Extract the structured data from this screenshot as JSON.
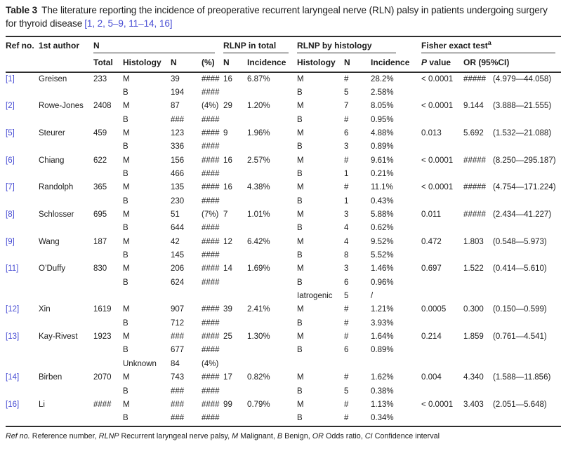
{
  "title": {
    "label": "Table 3",
    "text": "The literature reporting the incidence of preoperative recurrent laryngeal nerve (RLN) palsy in patients undergoing surgery for thyroid disease",
    "citation": "[1, 2, 5–9, 11–14, 16]"
  },
  "colors": {
    "link": "#4a4fd4",
    "text": "#1c1c1c",
    "rule": "#2e2e2e"
  },
  "header": {
    "ref_no": "Ref no.",
    "first_author": "1st author",
    "group_n": "N",
    "group_rlnp_total": "RLNP in total",
    "group_rlnp_hist": "RLNP by histology",
    "group_fisher": "Fisher exact test",
    "group_fisher_sup": "a",
    "total": "Total",
    "histology": "Histology",
    "n_count": "N",
    "pct": "(%)",
    "n_total": "N",
    "incidence_total": "Incidence",
    "histology2": "Histology",
    "n_hist": "N",
    "incidence_hist": "Incidence",
    "p_italic": "P",
    "p_rest": " value",
    "or_ci": "OR (95%CI)"
  },
  "studies": [
    {
      "ref": "[1]",
      "author": "Greisen",
      "total": "233",
      "lines": [
        [
          "M",
          "39",
          "####",
          "16",
          "6.87%",
          "M",
          "#",
          "28.2%",
          "< 0.0001",
          "#####",
          "(4.979—44.058)"
        ],
        [
          "B",
          "194",
          "####",
          "",
          "",
          "B",
          "5",
          "2.58%",
          "",
          "",
          ""
        ]
      ]
    },
    {
      "ref": "[2]",
      "author": "Rowe-Jones",
      "total": "2408",
      "lines": [
        [
          "M",
          "87",
          "(4%)",
          "29",
          "1.20%",
          "M",
          "7",
          "8.05%",
          "< 0.0001",
          "9.144",
          "(3.888—21.555)"
        ],
        [
          "B",
          "###",
          "####",
          "",
          "",
          "B",
          "#",
          "0.95%",
          "",
          "",
          ""
        ]
      ]
    },
    {
      "ref": "[5]",
      "author": "Steurer",
      "total": "459",
      "lines": [
        [
          "M",
          "123",
          "####",
          "9",
          "1.96%",
          "M",
          "6",
          "4.88%",
          "0.013",
          "5.692",
          "(1.532—21.088)"
        ],
        [
          "B",
          "336",
          "####",
          "",
          "",
          "B",
          "3",
          "0.89%",
          "",
          "",
          ""
        ]
      ]
    },
    {
      "ref": "[6]",
      "author": "Chiang",
      "total": "622",
      "lines": [
        [
          "M",
          "156",
          "####",
          "16",
          "2.57%",
          "M",
          "#",
          "9.61%",
          "< 0.0001",
          "#####",
          "(8.250—295.187)"
        ],
        [
          "B",
          "466",
          "####",
          "",
          "",
          "B",
          "1",
          "0.21%",
          "",
          "",
          ""
        ]
      ]
    },
    {
      "ref": "[7]",
      "author": "Randolph",
      "total": "365",
      "lines": [
        [
          "M",
          "135",
          "####",
          "16",
          "4.38%",
          "M",
          "#",
          "11.1%",
          "< 0.0001",
          "#####",
          "(4.754—171.224)"
        ],
        [
          "B",
          "230",
          "####",
          "",
          "",
          "B",
          "1",
          "0.43%",
          "",
          "",
          ""
        ]
      ]
    },
    {
      "ref": "[8]",
      "author": "Schlosser",
      "total": "695",
      "lines": [
        [
          "M",
          "51",
          "(7%)",
          "7",
          "1.01%",
          "M",
          "3",
          "5.88%",
          "0.011",
          "#####",
          "(2.434—41.227)"
        ],
        [
          "B",
          "644",
          "####",
          "",
          "",
          "B",
          "4",
          "0.62%",
          "",
          "",
          ""
        ]
      ]
    },
    {
      "ref": "[9]",
      "author": "Wang",
      "total": "187",
      "lines": [
        [
          "M",
          "42",
          "####",
          "12",
          "6.42%",
          "M",
          "4",
          "9.52%",
          "0.472",
          "1.803",
          "(0.548—5.973)"
        ],
        [
          "B",
          "145",
          "####",
          "",
          "",
          "B",
          "8",
          "5.52%",
          "",
          "",
          ""
        ]
      ]
    },
    {
      "ref": "[11]",
      "author": "O’Duffy",
      "total": "830",
      "lines": [
        [
          "M",
          "206",
          "####",
          "14",
          "1.69%",
          "M",
          "3",
          "1.46%",
          "0.697",
          "1.522",
          "(0.414—5.610)"
        ],
        [
          "B",
          "624",
          "####",
          "",
          "",
          "B",
          "6",
          "0.96%",
          "",
          "",
          ""
        ],
        [
          "",
          "",
          "",
          "",
          "",
          "Iatrogenic",
          "5",
          "/",
          "",
          "",
          ""
        ]
      ]
    },
    {
      "ref": "[12]",
      "author": "Xin",
      "total": "1619",
      "lines": [
        [
          "M",
          "907",
          "####",
          "39",
          "2.41%",
          "M",
          "#",
          "1.21%",
          "0.0005",
          "0.300",
          "(0.150—0.599)"
        ],
        [
          "B",
          "712",
          "####",
          "",
          "",
          "B",
          "#",
          "3.93%",
          "",
          "",
          ""
        ]
      ]
    },
    {
      "ref": "[13]",
      "author": "Kay-Rivest",
      "total": "1923",
      "lines": [
        [
          "M",
          "###",
          "####",
          "25",
          "1.30%",
          "M",
          "#",
          "1.64%",
          "0.214",
          "1.859",
          "(0.761—4.541)"
        ],
        [
          "B",
          "677",
          "####",
          "",
          "",
          "B",
          "6",
          "0.89%",
          "",
          "",
          ""
        ],
        [
          "Unknown",
          "84",
          "(4%)",
          "",
          "",
          "",
          "",
          "",
          "",
          "",
          ""
        ]
      ]
    },
    {
      "ref": "[14]",
      "author": "Birben",
      "total": "2070",
      "lines": [
        [
          "M",
          "743",
          "####",
          "17",
          "0.82%",
          "M",
          "#",
          "1.62%",
          "0.004",
          "4.340",
          "(1.588—11.856)"
        ],
        [
          "B",
          "###",
          "####",
          "",
          "",
          "B",
          "5",
          "0.38%",
          "",
          "",
          ""
        ]
      ]
    },
    {
      "ref": "[16]",
      "author": "Li",
      "total": "####",
      "lines": [
        [
          "M",
          "###",
          "####",
          "99",
          "0.79%",
          "M",
          "#",
          "1.13%",
          "< 0.0001",
          "3.403",
          "(2.051—5.648)"
        ],
        [
          "B",
          "###",
          "####",
          "",
          "",
          "B",
          "#",
          "0.34%",
          "",
          "",
          ""
        ]
      ]
    }
  ],
  "footnote": [
    {
      "term": "Ref no.",
      "desc": " Reference number, "
    },
    {
      "term": "RLNP",
      "desc": " Recurrent laryngeal nerve palsy, "
    },
    {
      "term": "M",
      "desc": " Malignant, "
    },
    {
      "term": "B",
      "desc": " Benign, "
    },
    {
      "term": "OR",
      "desc": " Odds ratio, "
    },
    {
      "term": "CI",
      "desc": " Confidence interval"
    }
  ]
}
